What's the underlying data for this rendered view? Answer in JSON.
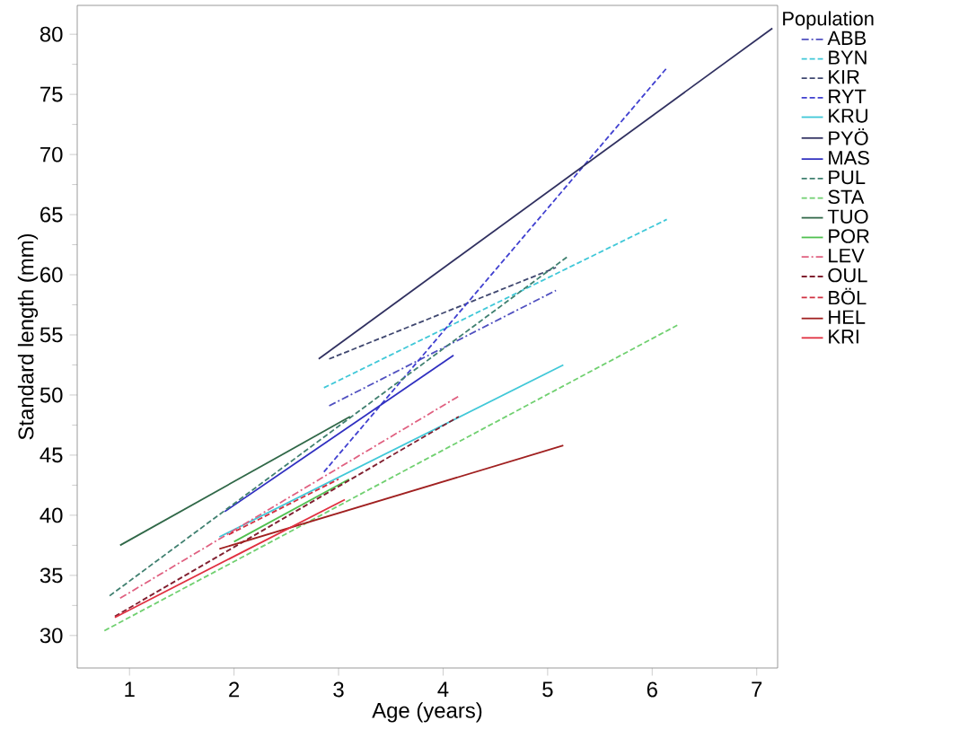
{
  "chart_data": {
    "type": "line",
    "xlabel": "Age (years)",
    "ylabel": "Standard length (mm)",
    "legend_title": "Population",
    "legend": "right",
    "xlim": [
      0.5,
      7.2
    ],
    "ylim": [
      27.3,
      82.4
    ],
    "xticks": [
      1,
      2,
      3,
      4,
      5,
      6,
      7
    ],
    "yticks": [
      30,
      35,
      40,
      45,
      50,
      55,
      60,
      65,
      70,
      75,
      80
    ],
    "series": [
      {
        "name": "ABB",
        "color": "#5050c0",
        "line_style": "dashdot",
        "x": [
          2.91,
          5.08
        ],
        "values": [
          49.1,
          58.7
        ]
      },
      {
        "name": "BYN",
        "color": "#40c8d8",
        "line_style": "dashed",
        "x": [
          2.86,
          6.14
        ],
        "values": [
          50.6,
          64.6
        ]
      },
      {
        "name": "KIR",
        "color": "#404870",
        "line_style": "dashed",
        "x": [
          2.91,
          5.08
        ],
        "values": [
          53.0,
          60.6
        ]
      },
      {
        "name": "RYT",
        "color": "#4040d0",
        "line_style": "dashed",
        "x": [
          2.86,
          6.14
        ],
        "values": [
          43.6,
          77.2
        ]
      },
      {
        "name": "KRU",
        "color": "#40c8d8",
        "line_style": "solid",
        "x": [
          1.86,
          5.15
        ],
        "values": [
          38.2,
          52.5
        ]
      },
      {
        "name": "PYÖ",
        "color": "#303060",
        "line_style": "solid",
        "x": [
          2.81,
          7.15
        ],
        "values": [
          53.0,
          80.5
        ]
      },
      {
        "name": "MAS",
        "color": "#3030c0",
        "line_style": "solid",
        "x": [
          1.91,
          4.1
        ],
        "values": [
          40.3,
          53.3
        ]
      },
      {
        "name": "PUL",
        "color": "#408070",
        "line_style": "dashed",
        "x": [
          0.81,
          5.19
        ],
        "values": [
          33.3,
          61.5
        ]
      },
      {
        "name": "STA",
        "color": "#70d070",
        "line_style": "dashed",
        "x": [
          0.76,
          6.24
        ],
        "values": [
          30.4,
          55.8
        ]
      },
      {
        "name": "TUO",
        "color": "#306848",
        "line_style": "solid",
        "x": [
          0.91,
          3.11
        ],
        "values": [
          37.5,
          48.2
        ]
      },
      {
        "name": "POR",
        "color": "#50c050",
        "line_style": "solid",
        "x": [
          2.0,
          3.1
        ],
        "values": [
          37.8,
          43.0
        ]
      },
      {
        "name": "LEV",
        "color": "#e06080",
        "line_style": "dashdot",
        "x": [
          0.91,
          4.15
        ],
        "values": [
          33.1,
          49.9
        ]
      },
      {
        "name": "OUL",
        "color": "#802030",
        "line_style": "dashed",
        "x": [
          0.86,
          4.15
        ],
        "values": [
          31.6,
          48.2
        ]
      },
      {
        "name": "BÖL",
        "color": "#d03040",
        "line_style": "dashed",
        "x": [
          1.95,
          3.0
        ],
        "values": [
          38.4,
          43.0
        ]
      },
      {
        "name": "HEL",
        "color": "#a02020",
        "line_style": "solid",
        "x": [
          1.86,
          5.15
        ],
        "values": [
          37.2,
          45.8
        ]
      },
      {
        "name": "KRI",
        "color": "#e03040",
        "line_style": "solid",
        "x": [
          0.86,
          3.06
        ],
        "values": [
          31.5,
          41.3
        ]
      }
    ]
  }
}
